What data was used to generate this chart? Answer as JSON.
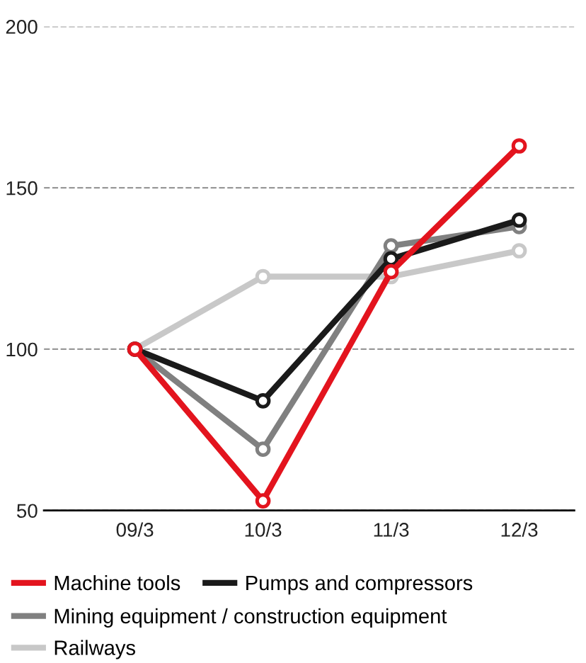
{
  "chart_data": {
    "type": "line",
    "categories": [
      "09/3",
      "10/3",
      "11/3",
      "12/3"
    ],
    "series": [
      {
        "name": "Machine tools",
        "color": "#e3141e",
        "values": [
          100,
          53,
          124,
          163
        ]
      },
      {
        "name": "Pumps and compressors",
        "color": "#1a1a1a",
        "values": [
          100,
          84,
          128,
          140
        ]
      },
      {
        "name": "Mining equipment / construction equipment",
        "color": "#808080",
        "values": [
          100,
          69,
          132,
          138
        ]
      },
      {
        "name": "Railways",
        "color": "#c8c8c8",
        "values": [
          100,
          122.5,
          122.5,
          130.5
        ]
      }
    ],
    "ylim": [
      50,
      200
    ],
    "yticks": [
      50,
      100,
      150,
      200
    ],
    "grid": "y",
    "legend": "bottom",
    "marker": "circle",
    "line_style": "solid"
  }
}
